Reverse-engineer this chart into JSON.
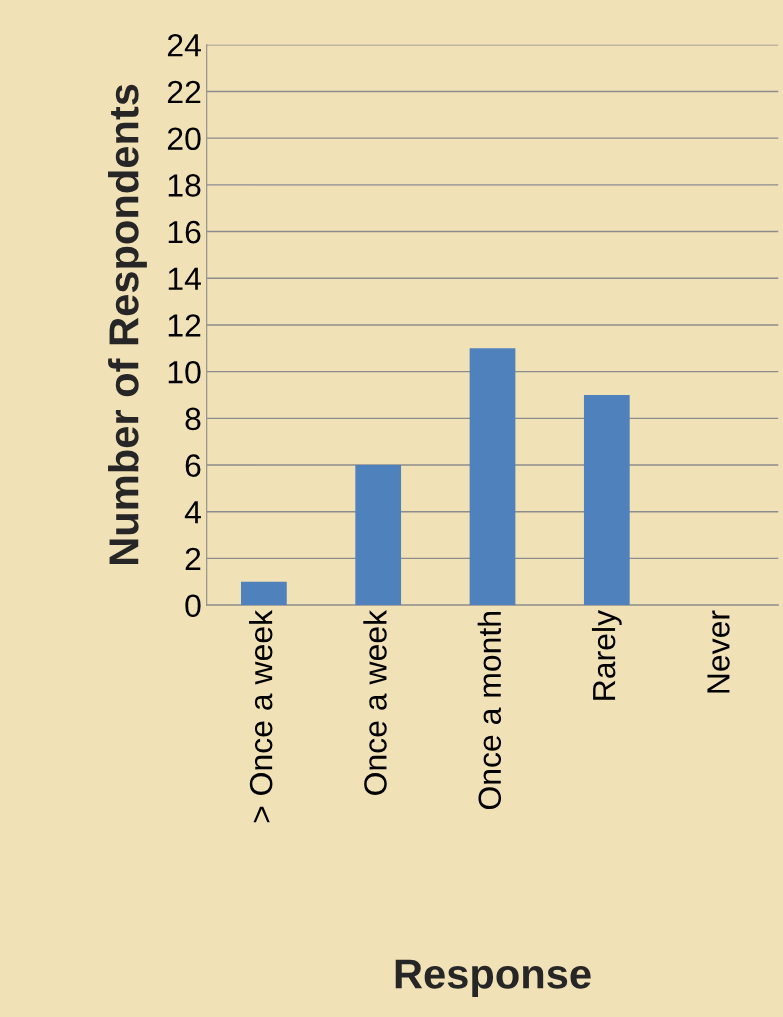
{
  "chart_data": {
    "type": "bar",
    "xlabel": "Response",
    "ylabel": "Number of Respondents",
    "categories": [
      "> Once a week",
      "Once a week",
      "Once a month",
      "Rarely",
      "Never"
    ],
    "values": [
      1,
      6,
      11,
      9,
      0
    ],
    "color": "#4f81bd",
    "ylim": [
      0,
      24
    ],
    "yticks": [
      0,
      2,
      4,
      6,
      8,
      10,
      12,
      14,
      16,
      18,
      20,
      22,
      24
    ],
    "grid": "y",
    "legend": false
  }
}
